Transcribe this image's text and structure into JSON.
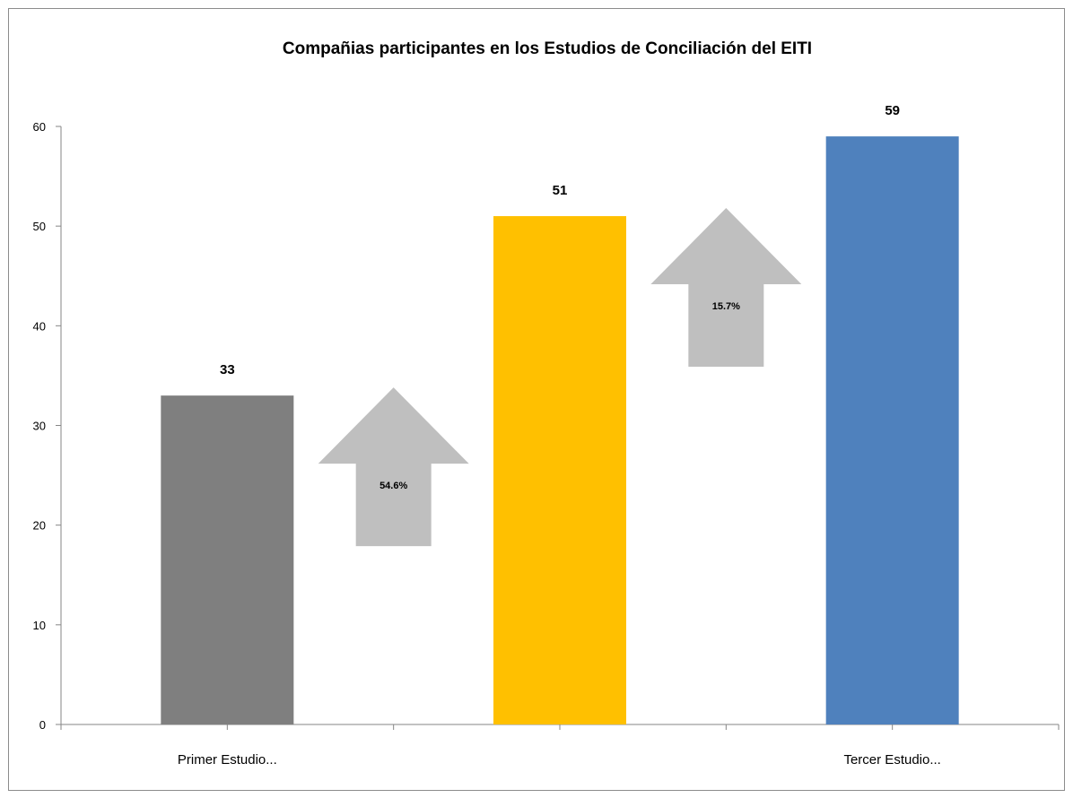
{
  "chart_data": {
    "type": "bar",
    "title": "Compañias participantes en los Estudios de Conciliación del EITI",
    "xlabel": "",
    "ylabel": "",
    "categories": [
      "Primer Estudio...",
      "",
      "Tercer Estudio..."
    ],
    "values": [
      33,
      51,
      59
    ],
    "value_labels": [
      "33",
      "51",
      "59"
    ],
    "bar_colors": [
      "#7f7f7f",
      "#ffc000",
      "#4f81bd"
    ],
    "ylim": [
      0,
      60
    ],
    "yticks": [
      0,
      10,
      20,
      30,
      40,
      50,
      60
    ],
    "grid": false,
    "legend": "none",
    "annotations": [
      {
        "label": "54.6%",
        "shape": "up-arrow",
        "between": [
          0,
          1
        ],
        "color": "#bfbfbf"
      },
      {
        "label": "15.7%",
        "shape": "up-arrow",
        "between": [
          1,
          2
        ],
        "color": "#bfbfbf"
      }
    ]
  }
}
